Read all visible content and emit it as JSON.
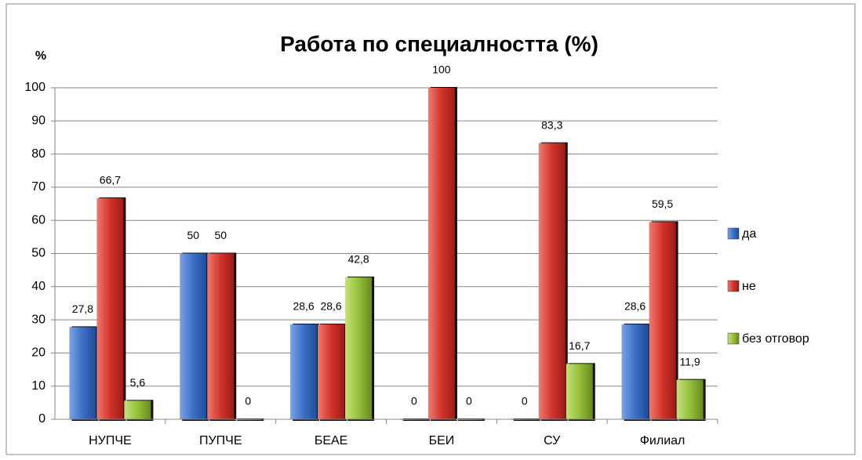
{
  "chart_data": {
    "type": "bar",
    "title": "Работа по специалността (%)",
    "y_label": "%",
    "categories": [
      "НУПЧЕ",
      "ПУПЧЕ",
      "БЕАЕ",
      "БЕИ",
      "СУ",
      "Филиал"
    ],
    "series": [
      {
        "name": "да",
        "color": "#3b6fc6",
        "values": [
          27.8,
          50,
          28.6,
          0,
          0,
          28.6
        ],
        "value_labels": [
          "27,8",
          "50",
          "28,6",
          "0",
          "0",
          "28,6"
        ]
      },
      {
        "name": "не",
        "color": "#d2342c",
        "values": [
          66.7,
          50,
          28.6,
          100,
          83.3,
          59.5
        ],
        "value_labels": [
          "66,7",
          "50",
          "28,6",
          "100",
          "83,3",
          "59,5"
        ]
      },
      {
        "name": "без отговор",
        "color": "#95c03a",
        "values": [
          5.6,
          0,
          42.8,
          0,
          16.7,
          11.9
        ],
        "value_labels": [
          "5,6",
          "0",
          "42,8",
          "0",
          "16,7",
          "11,9"
        ]
      }
    ],
    "ylim": [
      0,
      100
    ],
    "yticks": [
      0,
      10,
      20,
      30,
      40,
      50,
      60,
      70,
      80,
      90,
      100
    ],
    "grid": true,
    "legend": "right"
  }
}
